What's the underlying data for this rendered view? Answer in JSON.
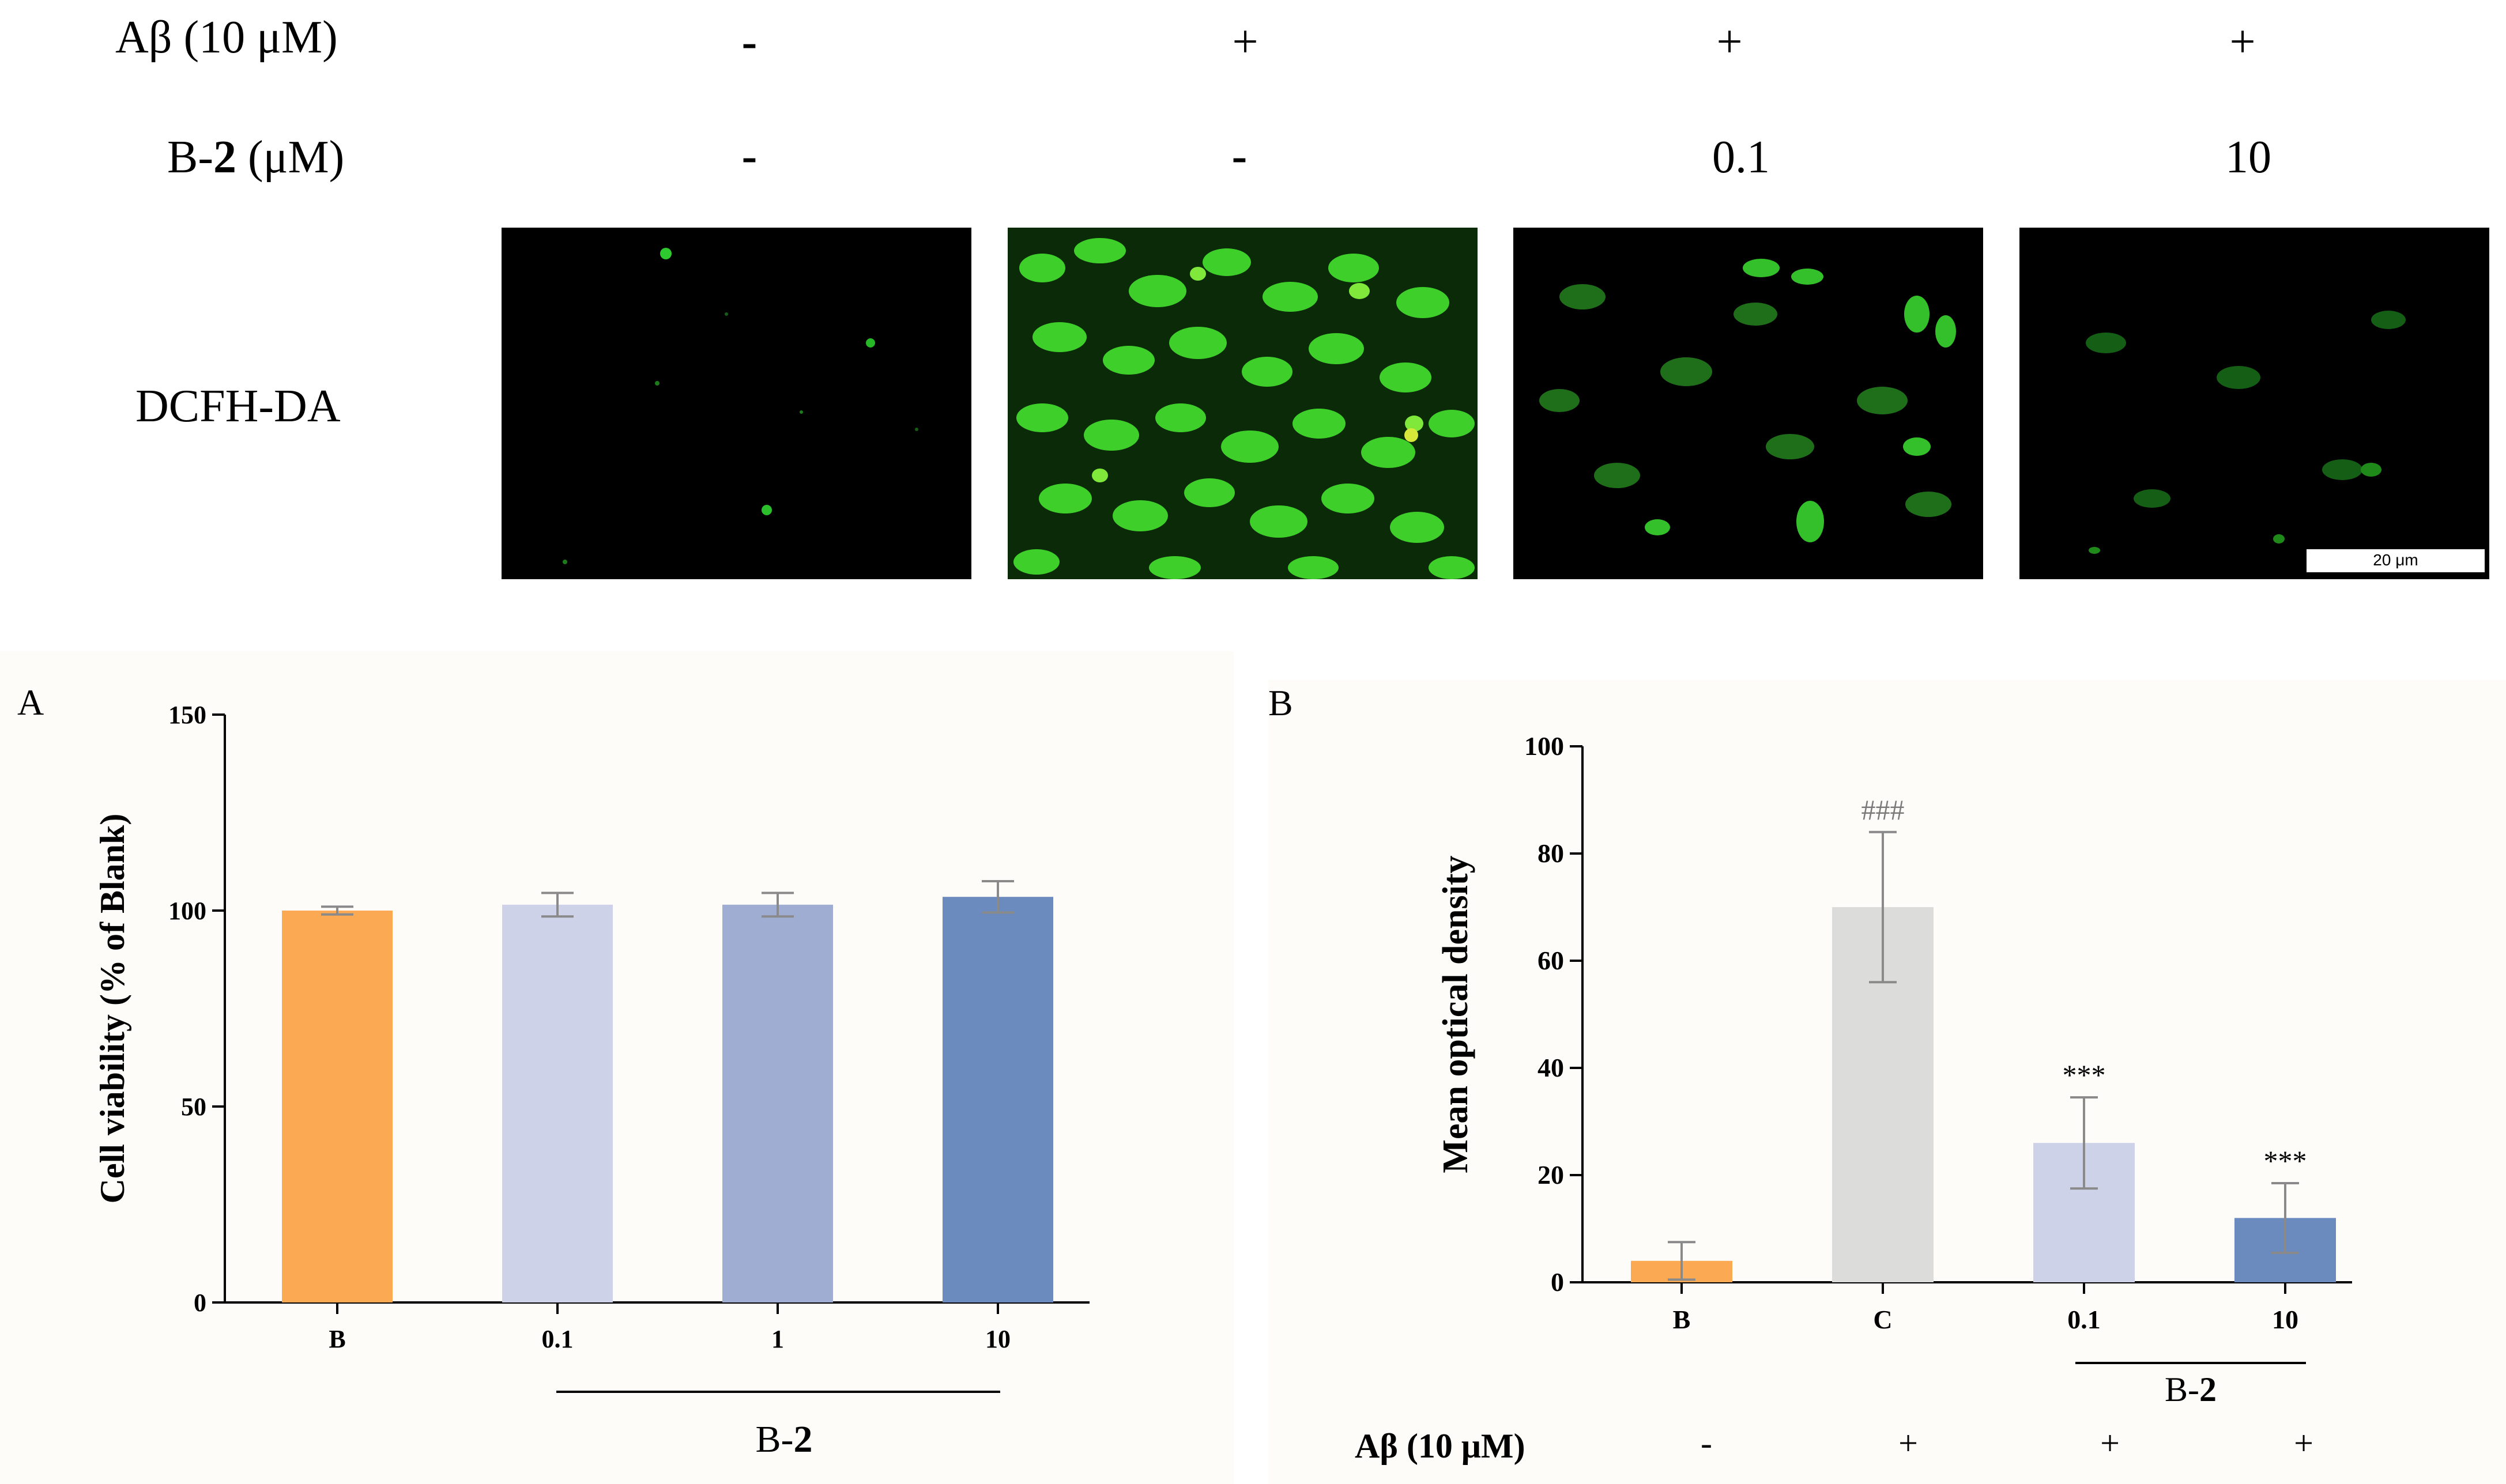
{
  "figure": {
    "rows": [
      {
        "label_pre": "Aβ (10 μM)",
        "label_bold": "",
        "label_post": "",
        "values": [
          "-",
          "+",
          "+",
          "+"
        ]
      },
      {
        "label_pre": "B-",
        "label_bold": "2",
        "label_post": " (μM)",
        "values": [
          "-",
          "-",
          "0.1",
          "10"
        ]
      }
    ],
    "image_row_label": "DCFH-DA",
    "scale_bar_text": "20 μm",
    "micrographs": [
      {
        "name": "control",
        "fluorescence": "sparse"
      },
      {
        "name": "abeta",
        "fluorescence": "bright-dense"
      },
      {
        "name": "abeta-b2-0.1",
        "fluorescence": "moderate"
      },
      {
        "name": "abeta-b2-10",
        "fluorescence": "faint"
      }
    ]
  },
  "panel_a": {
    "letter": "A",
    "group_label_pre": "B-",
    "group_label_bold": "2"
  },
  "panel_b": {
    "letter": "B",
    "group_label_pre": "B-",
    "group_label_bold": "2",
    "abeta_row_label": "Aβ (10 μM)",
    "abeta_row_values": [
      "-",
      "+",
      "+",
      "+"
    ]
  },
  "chart_data": [
    {
      "type": "bar",
      "ylabel": "Cell viability (% of Blank)",
      "xlabel": "",
      "categories": [
        "B",
        "0.1",
        "1",
        "10"
      ],
      "values": [
        100,
        101.5,
        101.5,
        103.5
      ],
      "errors": [
        1,
        3,
        3,
        4
      ],
      "ylim": [
        0,
        150
      ],
      "yticks": [
        0,
        50,
        100,
        150
      ],
      "colors": [
        "#fca953",
        "#cdd2e8",
        "#9eadd1",
        "#6b8abe"
      ],
      "annotations": [
        "",
        "",
        "",
        ""
      ],
      "grid": false
    },
    {
      "type": "bar",
      "ylabel": "Mean optical density",
      "xlabel": "",
      "categories": [
        "B",
        "C",
        "0.1",
        "10"
      ],
      "values": [
        4,
        70,
        26,
        12
      ],
      "errors": [
        3.5,
        14,
        8.5,
        6.5
      ],
      "ylim": [
        0,
        100
      ],
      "yticks": [
        0,
        20,
        40,
        60,
        80,
        100
      ],
      "colors": [
        "#fca953",
        "#dcdcda",
        "#cdd2e8",
        "#6b8abe"
      ],
      "annotations": [
        "",
        "###",
        "***",
        "***"
      ],
      "grid": false
    }
  ]
}
